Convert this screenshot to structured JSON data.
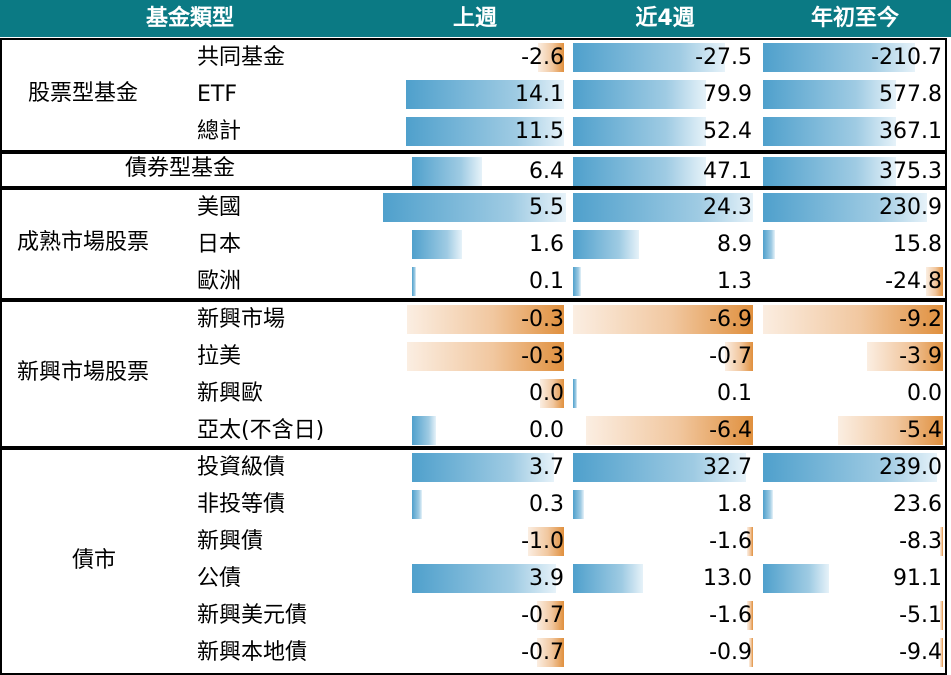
{
  "headers": {
    "category": "基金類型",
    "week": "上週",
    "w4": "近4週",
    "ytd": "年初至今"
  },
  "groups": [
    {
      "label": "股票型基金",
      "rows": [
        {
          "name": "共同基金",
          "week": "-2.6",
          "w4": "-27.5",
          "ytd": "-210.7"
        },
        {
          "name": "ETF",
          "week": "14.1",
          "w4": "79.9",
          "ytd": "577.8"
        },
        {
          "name": "總計",
          "week": "11.5",
          "w4": "52.4",
          "ytd": "367.1"
        }
      ]
    },
    {
      "label": "債券型基金",
      "rows": [
        {
          "name": "",
          "week": "6.4",
          "w4": "47.1",
          "ytd": "375.3"
        }
      ]
    },
    {
      "label": "成熟市場股票",
      "rows": [
        {
          "name": "美國",
          "week": "5.5",
          "w4": "24.3",
          "ytd": "230.9"
        },
        {
          "name": "日本",
          "week": "1.6",
          "w4": "8.9",
          "ytd": "15.8"
        },
        {
          "name": "歐洲",
          "week": "0.1",
          "w4": "1.3",
          "ytd": "-24.8"
        }
      ]
    },
    {
      "label": "新興市場股票",
      "rows": [
        {
          "name": "新興市場",
          "week": "-0.3",
          "w4": "-6.9",
          "ytd": "-9.2"
        },
        {
          "name": "拉美",
          "week": "-0.3",
          "w4": "-0.7",
          "ytd": "-3.9"
        },
        {
          "name": "新興歐",
          "week": "0.0",
          "w4": "0.1",
          "ytd": "0.0"
        },
        {
          "name": "亞太(不含日)",
          "week": "0.0",
          "w4": "-6.4",
          "ytd": "-5.4"
        }
      ]
    },
    {
      "label": "債市",
      "rows": [
        {
          "name": "投資級債",
          "week": "3.7",
          "w4": "32.7",
          "ytd": "239.0"
        },
        {
          "name": "非投等債",
          "week": "0.3",
          "w4": "1.8",
          "ytd": "23.6"
        },
        {
          "name": "新興債",
          "week": "-1.0",
          "w4": "-1.6",
          "ytd": "-8.3"
        },
        {
          "name": "公債",
          "week": "3.9",
          "w4": "13.0",
          "ytd": "91.1"
        },
        {
          "name": "新興美元債",
          "week": "-0.7",
          "w4": "-1.6",
          "ytd": "-5.1"
        },
        {
          "name": "新興本地債",
          "week": "-0.7",
          "w4": "-0.9",
          "ytd": "-9.4"
        }
      ]
    }
  ],
  "colors": {
    "header_bg": "#0b7a84",
    "positive_bar": "#4fa0cc",
    "negative_bar": "#e0903e"
  }
}
